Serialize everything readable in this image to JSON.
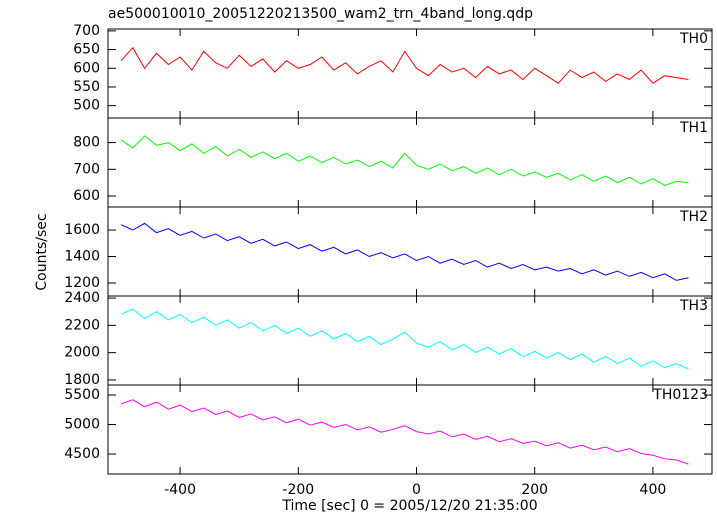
{
  "chart_data": {
    "type": "line",
    "title": "ae500010010_20051220213500_wam2_trn_4band_long.qdp",
    "x_label": "Time [sec] 0 = 2005/12/20 21:35:00",
    "y_label": "Counts/sec",
    "xlim": [
      -522,
      500
    ],
    "xticks": [
      -400,
      -200,
      0,
      200,
      400
    ],
    "x": [
      -500,
      -480,
      -460,
      -440,
      -420,
      -400,
      -380,
      -360,
      -340,
      -320,
      -300,
      -280,
      -260,
      -240,
      -220,
      -200,
      -180,
      -160,
      -140,
      -120,
      -100,
      -80,
      -60,
      -40,
      -20,
      0,
      20,
      40,
      60,
      80,
      100,
      120,
      140,
      160,
      180,
      200,
      220,
      240,
      260,
      280,
      300,
      320,
      340,
      360,
      380,
      400,
      420,
      440,
      460
    ],
    "panels": [
      {
        "name": "TH0",
        "color": "#ff0000",
        "ylim": [
          467,
          705
        ],
        "yticks": [
          500,
          550,
          600,
          650,
          700
        ],
        "values": [
          620,
          655,
          600,
          640,
          610,
          630,
          595,
          645,
          615,
          600,
          635,
          605,
          625,
          590,
          620,
          600,
          610,
          630,
          595,
          615,
          585,
          605,
          620,
          590,
          645,
          600,
          580,
          610,
          590,
          600,
          575,
          605,
          585,
          595,
          570,
          600,
          580,
          560,
          595,
          575,
          590,
          565,
          585,
          570,
          595,
          560,
          580,
          575,
          570
        ]
      },
      {
        "name": "TH1",
        "color": "#00ff00",
        "ylim": [
          559,
          892
        ],
        "yticks": [
          600,
          700,
          800
        ],
        "values": [
          810,
          780,
          825,
          790,
          800,
          770,
          795,
          760,
          785,
          750,
          775,
          745,
          765,
          740,
          760,
          730,
          750,
          725,
          745,
          720,
          735,
          710,
          730,
          705,
          760,
          715,
          700,
          720,
          695,
          710,
          685,
          705,
          680,
          700,
          675,
          690,
          670,
          685,
          660,
          680,
          655,
          675,
          650,
          670,
          645,
          665,
          640,
          655,
          650
        ]
      },
      {
        "name": "TH2",
        "color": "#0000ff",
        "ylim": [
          1102,
          1774
        ],
        "yticks": [
          1200,
          1400,
          1600
        ],
        "values": [
          1640,
          1600,
          1650,
          1580,
          1610,
          1560,
          1590,
          1540,
          1570,
          1520,
          1550,
          1500,
          1530,
          1480,
          1510,
          1460,
          1490,
          1440,
          1470,
          1420,
          1450,
          1400,
          1430,
          1390,
          1420,
          1370,
          1400,
          1350,
          1380,
          1340,
          1370,
          1320,
          1350,
          1310,
          1340,
          1300,
          1320,
          1290,
          1310,
          1270,
          1300,
          1260,
          1290,
          1250,
          1280,
          1240,
          1270,
          1220,
          1240
        ]
      },
      {
        "name": "TH3",
        "color": "#00ffff",
        "ylim": [
          1763,
          2415
        ],
        "yticks": [
          1800,
          2000,
          2200,
          2400
        ],
        "values": [
          2280,
          2320,
          2250,
          2300,
          2240,
          2280,
          2220,
          2260,
          2200,
          2240,
          2180,
          2220,
          2160,
          2200,
          2140,
          2180,
          2120,
          2160,
          2100,
          2140,
          2080,
          2120,
          2060,
          2100,
          2150,
          2070,
          2040,
          2080,
          2020,
          2060,
          2000,
          2040,
          1990,
          2030,
          1970,
          2010,
          1960,
          2000,
          1950,
          1990,
          1930,
          1970,
          1920,
          1960,
          1900,
          1940,
          1890,
          1920,
          1880
        ]
      },
      {
        "name": "TH0123",
        "color": "#ff00ff",
        "ylim": [
          4162,
          5670
        ],
        "yticks": [
          4500,
          5000,
          5500
        ],
        "values": [
          5350,
          5420,
          5300,
          5380,
          5260,
          5330,
          5220,
          5280,
          5170,
          5230,
          5120,
          5180,
          5080,
          5130,
          5030,
          5090,
          4990,
          5040,
          4950,
          5000,
          4910,
          4960,
          4870,
          4920,
          4980,
          4880,
          4840,
          4890,
          4790,
          4840,
          4750,
          4800,
          4710,
          4760,
          4680,
          4720,
          4640,
          4690,
          4600,
          4650,
          4570,
          4620,
          4540,
          4590,
          4510,
          4480,
          4420,
          4400,
          4330
        ]
      }
    ]
  }
}
